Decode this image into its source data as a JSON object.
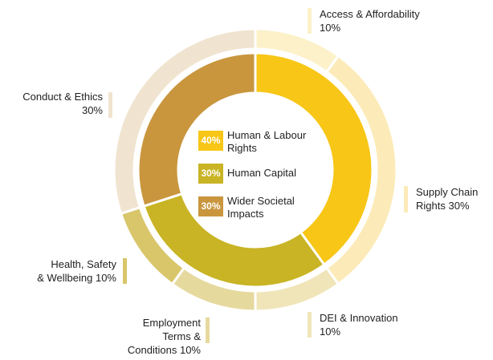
{
  "chart_data": {
    "type": "nested-donut",
    "inner": {
      "categories": [
        "Human & Labour Rights",
        "Human Capital",
        "Wider Societal Impacts"
      ],
      "values": [
        40,
        30,
        30
      ],
      "value_labels": [
        "40%",
        "30%",
        "30%"
      ],
      "colors": [
        "#f7c616",
        "#c8b424",
        "#c9963e"
      ]
    },
    "outer": {
      "categories": [
        "Access & Affordability",
        "Supply Chain Rights",
        "DEI & Innovation",
        "Employment Terms & Conditions",
        "Health, Safety & Wellbeing",
        "Conduct & Ethics"
      ],
      "values": [
        10,
        30,
        10,
        10,
        10,
        30
      ],
      "value_labels": [
        "10%",
        "30%",
        "10%",
        "10%",
        "10%",
        "30%"
      ],
      "colors": [
        "#fcf1c8",
        "#fcebb8",
        "#f0e5b9",
        "#e6d99e",
        "#d9c66b",
        "#f0e4d0"
      ]
    }
  }
}
